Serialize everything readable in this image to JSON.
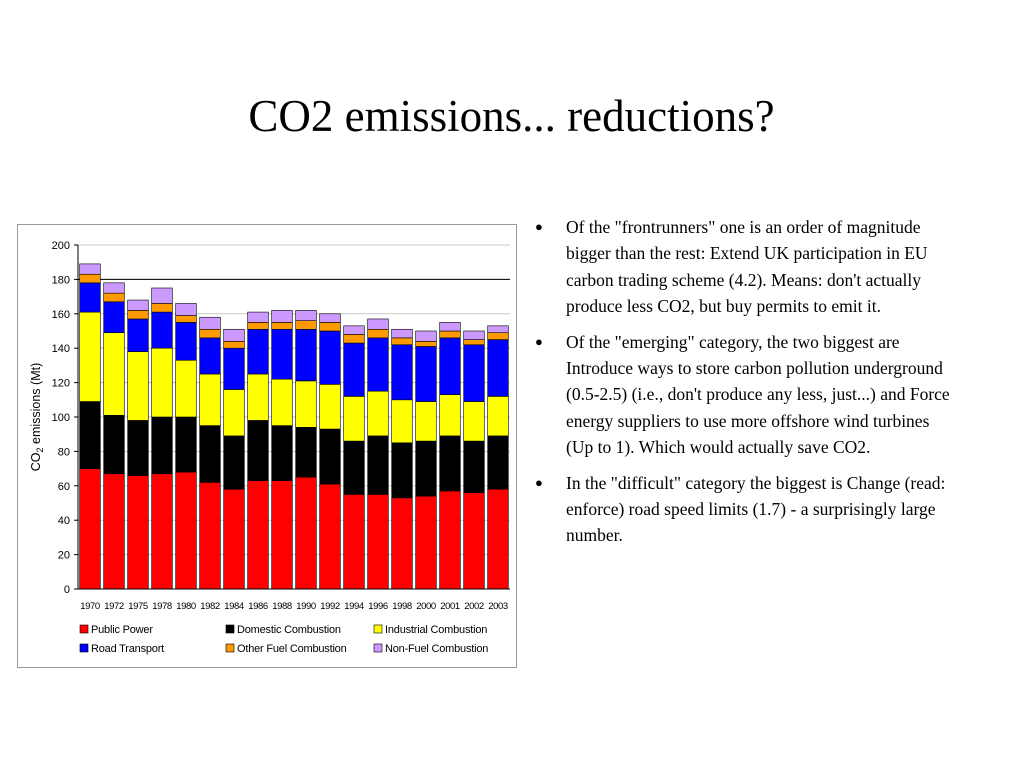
{
  "slide": {
    "title": "CO2 emissions... reductions?"
  },
  "bullets": [
    {
      "text": "Of the \"frontrunners\" one is an order of magnitude bigger than the rest: Extend UK participation in EU carbon trading scheme (4.2). Means: don't actually produce less CO2, but buy permits to emit it."
    },
    {
      "text": "Of the \"emerging\" category, the two biggest are Introduce ways to store carbon pollution underground (0.5-2.5) (i.e., don't produce any less, just...) and Force energy suppliers to use more offshore wind turbines (Up to 1). Which would actually save CO2."
    },
    {
      "text": "In the \"difficult\" category the biggest is Change (read: enforce) road speed limits (1.7) - a surprisingly large number."
    }
  ],
  "chart_data": {
    "type": "bar",
    "stacked": true,
    "title": "",
    "xlabel": "",
    "ylabel": "CO₂ emissions (Mt)",
    "ylabel_parts": {
      "pre": "CO",
      "sub": "2",
      "post": " emissions (Mt)"
    },
    "ylim": [
      0,
      200
    ],
    "yticks": [
      0,
      20,
      40,
      60,
      80,
      100,
      120,
      140,
      160,
      180,
      200
    ],
    "grid": "horizontal",
    "reference_line": 180,
    "legend_position": "bottom",
    "categories": [
      "1970",
      "1972",
      "1975",
      "1978",
      "1980",
      "1982",
      "1984",
      "1986",
      "1988",
      "1990",
      "1992",
      "1994",
      "1996",
      "1998",
      "2000",
      "2001",
      "2002",
      "2003"
    ],
    "series": [
      {
        "name": "Public Power",
        "color": "#ff0000",
        "values": [
          70,
          67,
          66,
          67,
          68,
          62,
          58,
          63,
          63,
          65,
          61,
          55,
          55,
          53,
          54,
          57,
          56,
          58
        ]
      },
      {
        "name": "Domestic Combustion",
        "color": "#000000",
        "values": [
          39,
          34,
          32,
          33,
          32,
          33,
          31,
          35,
          32,
          29,
          32,
          31,
          34,
          32,
          32,
          32,
          30,
          31
        ]
      },
      {
        "name": "Industrial Combustion",
        "color": "#ffff00",
        "values": [
          52,
          48,
          40,
          40,
          33,
          30,
          27,
          27,
          27,
          27,
          26,
          26,
          26,
          25,
          23,
          24,
          23,
          23
        ]
      },
      {
        "name": "Road Transport",
        "color": "#0000ff",
        "values": [
          17,
          18,
          19,
          21,
          22,
          21,
          24,
          26,
          29,
          30,
          31,
          31,
          31,
          32,
          32,
          33,
          33,
          33
        ]
      },
      {
        "name": "Other Fuel Combustion",
        "color": "#ff9900",
        "values": [
          5,
          5,
          5,
          5,
          4,
          5,
          4,
          4,
          4,
          5,
          5,
          5,
          5,
          4,
          3,
          4,
          3,
          4
        ]
      },
      {
        "name": "Non-Fuel Combustion",
        "color": "#cc99ff",
        "values": [
          6,
          6,
          6,
          9,
          7,
          7,
          7,
          6,
          7,
          6,
          5,
          5,
          6,
          5,
          6,
          5,
          5,
          4
        ]
      }
    ]
  }
}
